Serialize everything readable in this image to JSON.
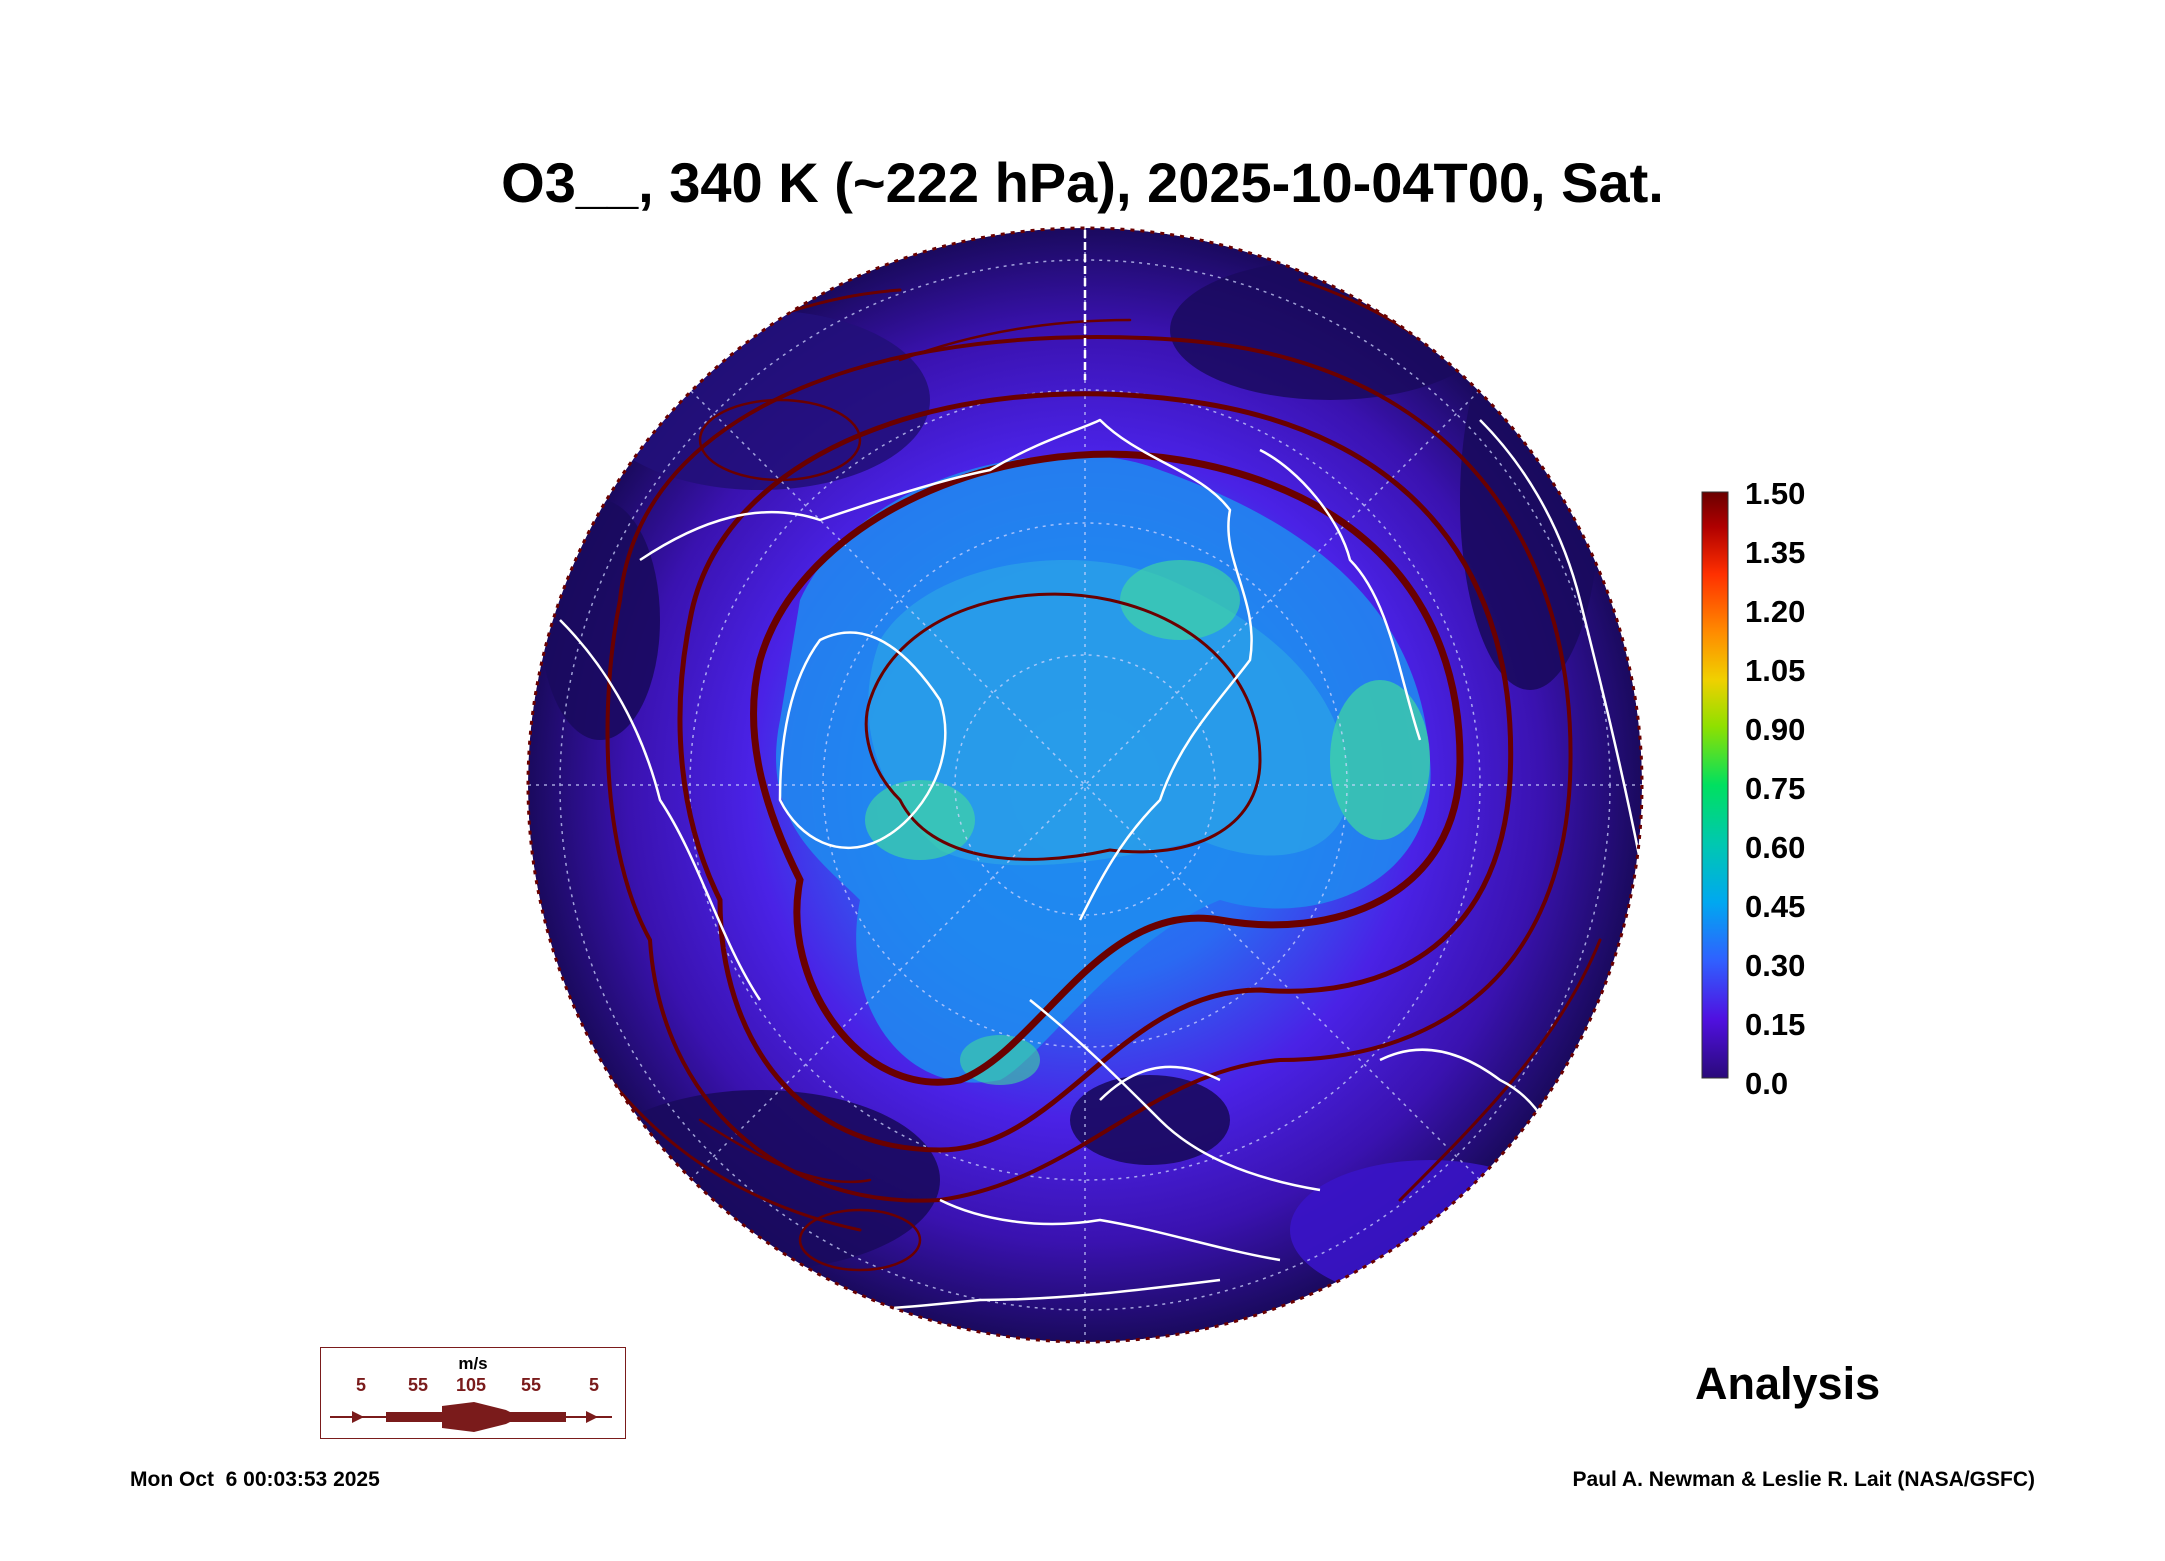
{
  "title": "O3__, 340 K (~222 hPa), 2025-10-04T00, Sat.",
  "colorbar": {
    "labels": [
      "1.50",
      "1.35",
      "1.20",
      "1.05",
      "0.90",
      "0.75",
      "0.60",
      "0.45",
      "0.30",
      "0.15",
      "0.0"
    ],
    "colors": [
      "#6a0000",
      "#b00000",
      "#ff3000",
      "#ff8c00",
      "#f0d000",
      "#8fe000",
      "#00e060",
      "#00c8b0",
      "#00a8f0",
      "#3060ff",
      "#5010e0",
      "#2a0a7a"
    ]
  },
  "map_colors": {
    "ocean_low": "#1a0a5e",
    "mid": "#5a1ae0",
    "high": "#1e7cf0",
    "peak": "#30e0a0",
    "streamline": "#6a0000",
    "coast": "#ffffff"
  },
  "analysis_label": "Analysis",
  "wind_legend": {
    "unit": "m/s",
    "values": [
      "5",
      "55",
      "105",
      "55",
      "5"
    ]
  },
  "footer_left": "Mon Oct  6 00:03:53 2025",
  "footer_right": "Paul A. Newman & Leslie R. Lait (NASA/GSFC)"
}
